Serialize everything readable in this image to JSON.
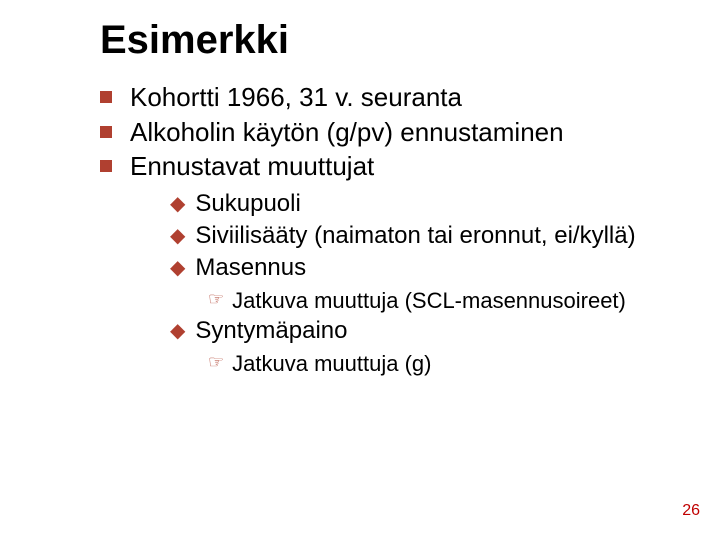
{
  "title": "Esimerkki",
  "colors": {
    "bullet": "#b04030",
    "pagenum": "#c00000",
    "text": "#000000",
    "background": "#ffffff"
  },
  "fontsizes": {
    "title": 40,
    "level1": 26,
    "level2": 24,
    "level3": 22,
    "pagenum": 16
  },
  "bullets": {
    "level1": [
      "Kohortti 1966, 31 v. seuranta",
      "Alkoholin käytön (g/pv) ennustaminen",
      "Ennustavat muuttujat"
    ],
    "level2": [
      {
        "text": "Sukupuoli"
      },
      {
        "text": "Siviilisääty (naimaton tai eronnut, ei/kyllä)"
      },
      {
        "text": "Masennus",
        "children": [
          "Jatkuva muuttuja (SCL-masennusoireet)"
        ]
      },
      {
        "text": "Syntymäpaino",
        "children": [
          "Jatkuva muuttuja (g)"
        ]
      }
    ]
  },
  "pagenum": "26"
}
